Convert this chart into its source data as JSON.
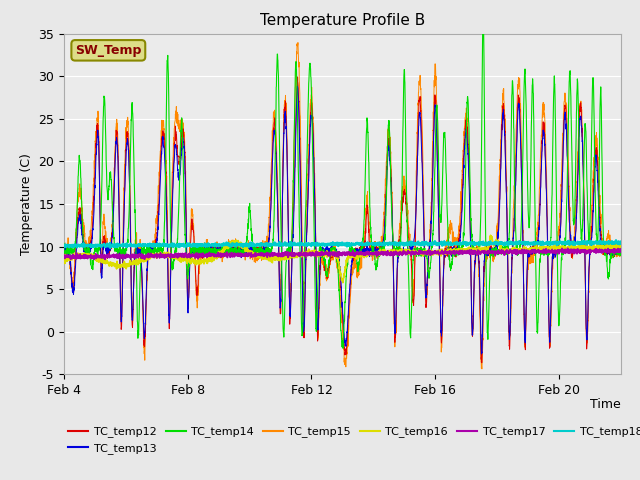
{
  "title": "Temperature Profile B",
  "xlabel": "Time",
  "ylabel": "Temperature (C)",
  "ylim": [
    -5,
    35
  ],
  "xlim": [
    4,
    22
  ],
  "xtick_labels": [
    "Feb 4",
    "Feb 8",
    "Feb 12",
    "Feb 16",
    "Feb 20"
  ],
  "xtick_positions": [
    4,
    8,
    12,
    16,
    20
  ],
  "ytick_positions": [
    -5,
    0,
    5,
    10,
    15,
    20,
    25,
    30,
    35
  ],
  "fig_bg_color": "#e8e8e8",
  "plot_bg_color": "#ebebeb",
  "grid_color": "#ffffff",
  "line_colors": {
    "TC_temp12": "#dd0000",
    "TC_temp13": "#0000dd",
    "TC_temp14": "#00dd00",
    "TC_temp15": "#ff8800",
    "TC_temp16": "#dddd00",
    "TC_temp17": "#aa00aa",
    "TC_temp18": "#00cccc"
  },
  "sw_temp_box_facecolor": "#dddd88",
  "sw_temp_box_edgecolor": "#888800",
  "sw_temp_text_color": "#880000",
  "legend_ncol": 6,
  "legend_fontsize": 8
}
